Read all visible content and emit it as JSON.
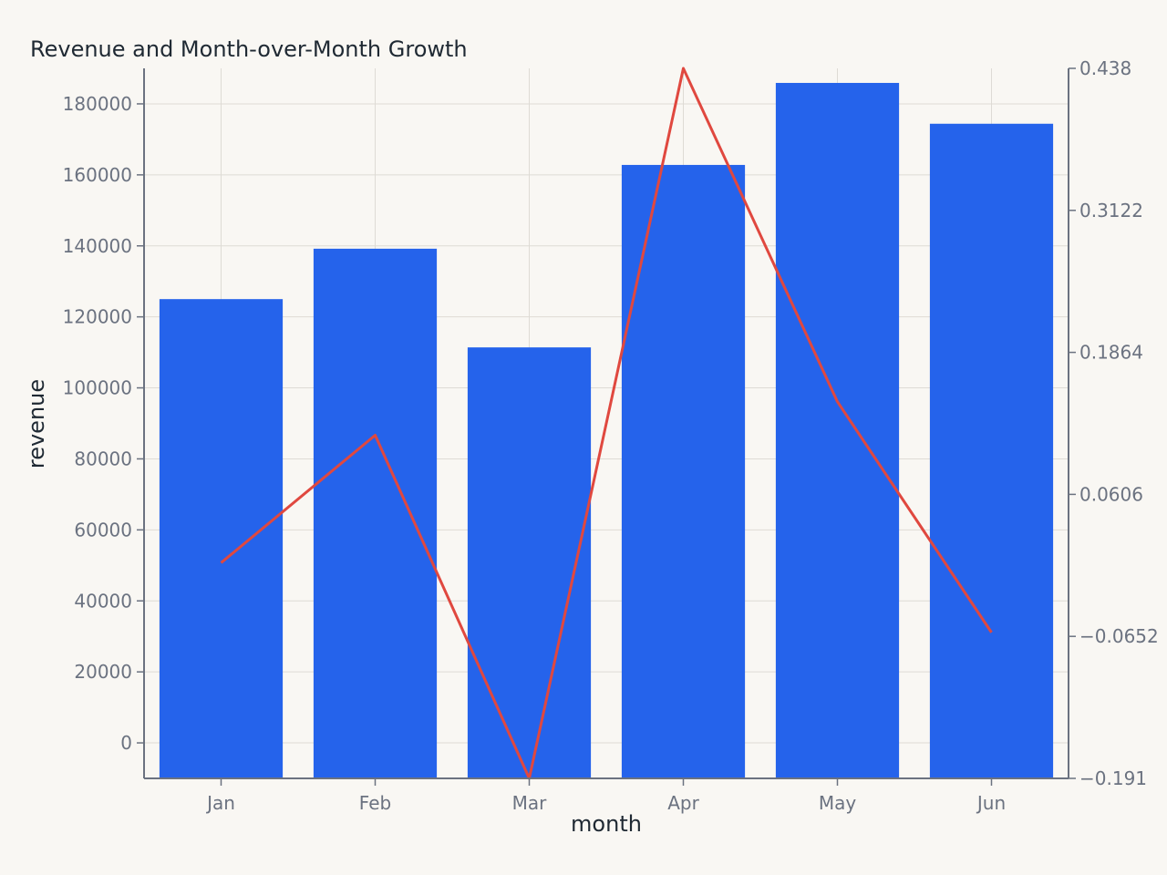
{
  "chart_data": {
    "type": "bar",
    "title": "Revenue and Month-over-Month Growth",
    "xlabel": "month",
    "ylabel": "revenue",
    "categories": [
      "Jan",
      "Feb",
      "Mar",
      "Apr",
      "May",
      "Jun"
    ],
    "series": [
      {
        "type": "bar",
        "axis": "left",
        "values": [
          125000,
          139200,
          111400,
          162800,
          185900,
          174400
        ],
        "color": "#2563eb"
      },
      {
        "type": "line",
        "axis": "right",
        "values": [
          0.0,
          0.113,
          -0.191,
          0.438,
          0.1427,
          -0.0617
        ],
        "color": "#e0483f"
      }
    ],
    "ylim": [
      -10000,
      190000
    ],
    "y_ticks": [
      0,
      20000,
      40000,
      60000,
      80000,
      100000,
      120000,
      140000,
      160000,
      180000
    ],
    "y2lim": [
      -0.191,
      0.438
    ],
    "y2_ticks": [
      "-0.191",
      "-0.0652",
      "0.0606",
      "0.1864",
      "0.3122",
      "0.438"
    ],
    "grid": true,
    "legend": "none",
    "background": "#f9f7f3"
  }
}
